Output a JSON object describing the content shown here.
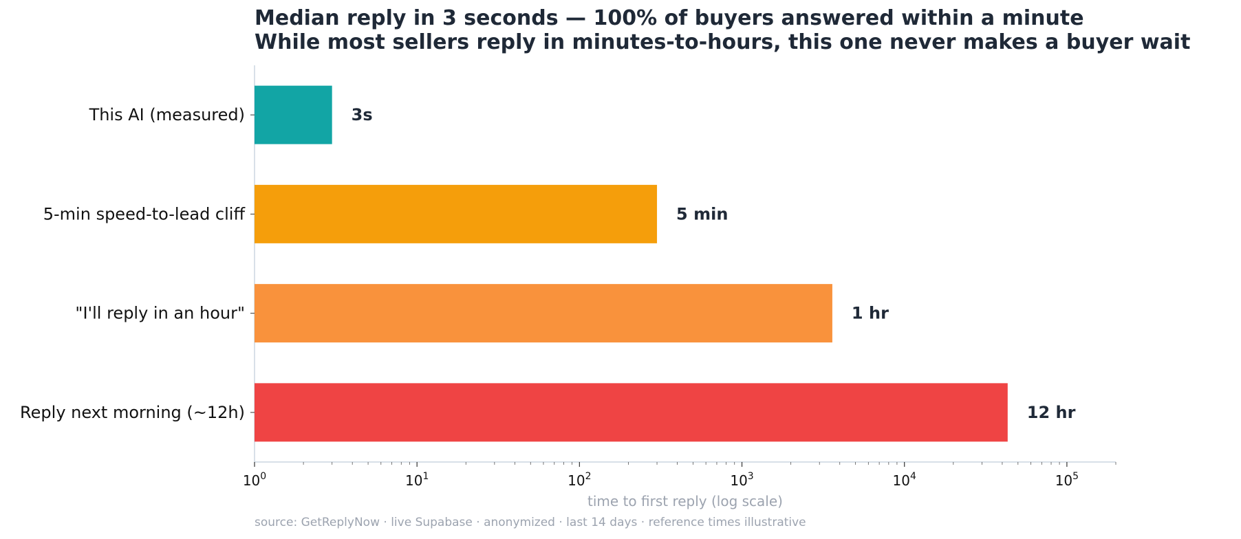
{
  "chart_data": {
    "type": "bar",
    "orientation": "horizontal",
    "title": "Median reply in 3 seconds — 100% of buyers answered within a minute",
    "subtitle": "While most sellers reply in minutes-to-hours, this one never makes a buyer wait",
    "categories": [
      "This AI (measured)",
      "5-min speed-to-lead cliff",
      "\"I'll reply in an hour\"",
      "Reply next morning (~12h)"
    ],
    "values": [
      3,
      300,
      3600,
      43200
    ],
    "value_labels": [
      "3s",
      "5 min",
      "1 hr",
      "12 hr"
    ],
    "colors": [
      "#12a5a5",
      "#f59e0b",
      "#f9923c",
      "#ef4444"
    ],
    "xlabel": "time to first reply (log scale)",
    "xscale": "log",
    "xlim": [
      1,
      200000
    ],
    "xticks": [
      1,
      10,
      100,
      1000,
      10000,
      100000
    ],
    "xtick_labels": [
      {
        "base": "10",
        "exp": "0"
      },
      {
        "base": "10",
        "exp": "1"
      },
      {
        "base": "10",
        "exp": "2"
      },
      {
        "base": "10",
        "exp": "3"
      },
      {
        "base": "10",
        "exp": "4"
      },
      {
        "base": "10",
        "exp": "5"
      }
    ],
    "grid": false,
    "source_note": "source: GetReplyNow · live Supabase · anonymized · last 14 days  ·  reference times illustrative"
  },
  "colors": {
    "text": "#1f2937",
    "muted": "#9ca3af",
    "axis": "#cbd5e1"
  }
}
